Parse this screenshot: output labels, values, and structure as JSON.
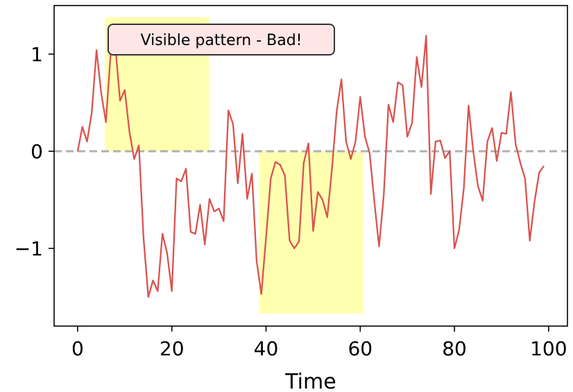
{
  "chart_data": {
    "type": "line",
    "xlabel": "Time",
    "ylabel": "",
    "title": "",
    "xlim": [
      -5,
      104
    ],
    "ylim": [
      -1.8,
      1.5
    ],
    "x_ticks": [
      0,
      20,
      40,
      60,
      80,
      100
    ],
    "y_ticks": [
      -1,
      0,
      1
    ],
    "y_tick_labels": [
      "−1",
      "0",
      "1"
    ],
    "grid": false,
    "legend": "none",
    "reference_line": {
      "y": 0,
      "style": "dashed",
      "color": "#b0b0b0"
    },
    "highlight_regions": [
      {
        "x0": 5.8,
        "x1": 27.9,
        "y0": 0,
        "y1": 1.38,
        "color": "#ffffb0"
      },
      {
        "x0": 38.5,
        "x1": 60.6,
        "y0": -1.67,
        "y1": 0,
        "color": "#ffffb0"
      }
    ],
    "annotation": {
      "text": "Visible pattern - Bad!",
      "x": 30.5,
      "y": 1.15,
      "box_fill": "#ffe6e6",
      "box_edge": "#333333"
    },
    "series": [
      {
        "color": "#d9534f",
        "x": [
          0,
          1,
          2,
          3,
          4,
          5,
          6,
          7,
          8,
          9,
          10,
          11,
          12,
          13,
          14,
          15,
          16,
          17,
          18,
          19,
          20,
          21,
          22,
          23,
          24,
          25,
          26,
          27,
          28,
          29,
          30,
          31,
          32,
          33,
          34,
          35,
          36,
          37,
          38,
          39,
          40,
          41,
          42,
          43,
          44,
          45,
          46,
          47,
          48,
          49,
          50,
          51,
          52,
          53,
          54,
          55,
          56,
          57,
          58,
          59,
          60,
          61,
          62,
          63,
          64,
          65,
          66,
          67,
          68,
          69,
          70,
          71,
          72,
          73,
          74,
          75,
          76,
          77,
          78,
          79,
          80,
          81,
          82,
          83,
          84,
          85,
          86,
          87,
          88,
          89,
          90,
          91,
          92,
          93,
          94,
          95,
          96,
          97,
          98,
          99
        ],
        "values": [
          0.0,
          0.25,
          0.1,
          0.4,
          1.04,
          0.6,
          0.3,
          1.0,
          1.08,
          0.52,
          0.63,
          0.2,
          -0.08,
          0.06,
          -0.9,
          -1.5,
          -1.33,
          -1.44,
          -0.85,
          -1.05,
          -1.44,
          -0.28,
          -0.31,
          -0.18,
          -0.83,
          -0.85,
          -0.55,
          -0.96,
          -0.49,
          -0.62,
          -0.59,
          -0.72,
          0.42,
          0.28,
          -0.33,
          0.18,
          -0.49,
          -0.23,
          -1.13,
          -1.47,
          -0.89,
          -0.28,
          -0.11,
          -0.14,
          -0.25,
          -0.92,
          -1.0,
          -0.93,
          -0.12,
          0.08,
          -0.82,
          -0.42,
          -0.5,
          -0.68,
          -0.18,
          0.41,
          0.74,
          0.1,
          -0.08,
          0.1,
          0.56,
          0.15,
          -0.02,
          -0.52,
          -0.98,
          -0.45,
          0.48,
          0.3,
          0.71,
          0.68,
          0.15,
          0.29,
          0.97,
          0.66,
          1.19,
          -0.44,
          0.1,
          0.11,
          -0.07,
          0.0,
          -1.0,
          -0.81,
          -0.38,
          0.47,
          0.0,
          -0.36,
          -0.51,
          0.1,
          0.24,
          -0.1,
          0.19,
          0.18,
          0.61,
          0.07,
          -0.12,
          -0.28,
          -0.92,
          -0.52,
          -0.22,
          -0.15
        ]
      }
    ]
  }
}
